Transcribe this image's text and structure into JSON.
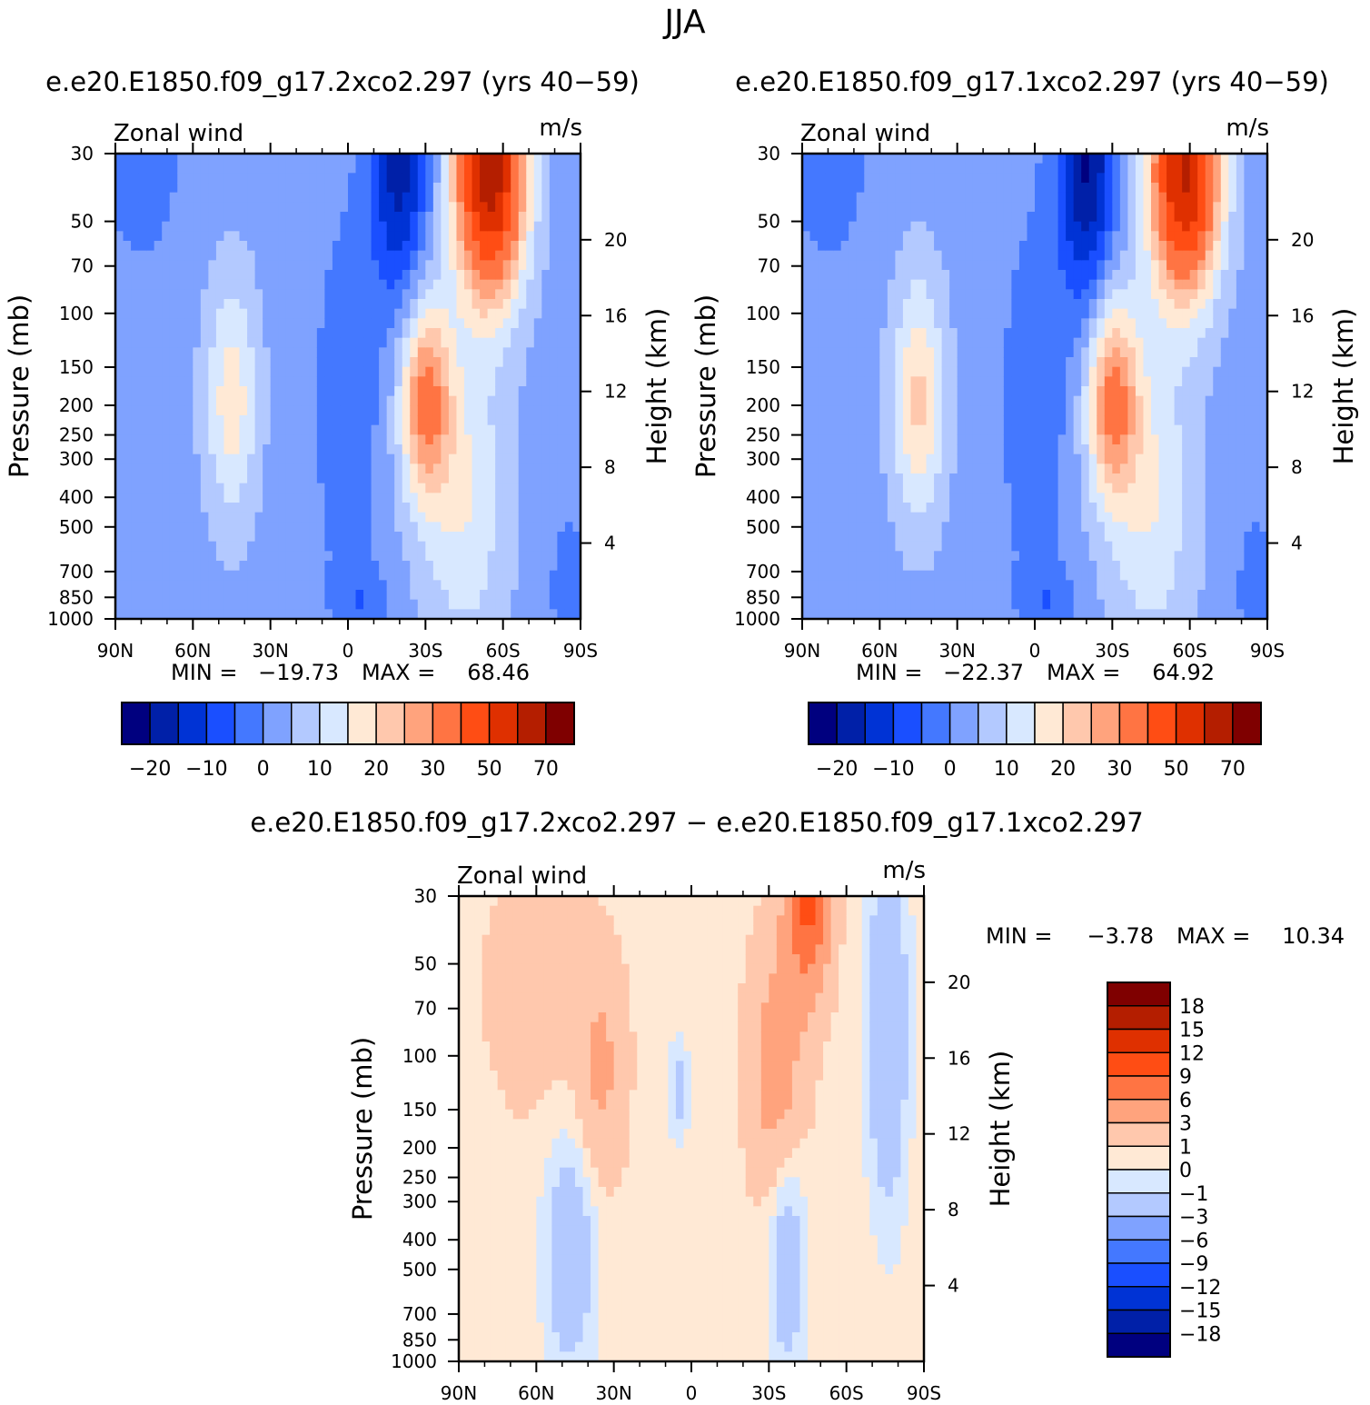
{
  "figure": {
    "title": "JJA"
  },
  "colors": {
    "main_scale": [
      "#00007f",
      "#0020a8",
      "#0033d5",
      "#1a4fff",
      "#4478ff",
      "#7fa2ff",
      "#b3c9ff",
      "#d8e8ff",
      "#ffe9d5",
      "#ffc8ad",
      "#ffa37d",
      "#ff7443",
      "#ff4d14",
      "#df3000",
      "#b41e00",
      "#7f0000"
    ],
    "diff_scale": [
      "#00007f",
      "#0020a8",
      "#0033d5",
      "#1a4fff",
      "#4478ff",
      "#7fa2ff",
      "#b3c9ff",
      "#d8e8ff",
      "#ffe9d5",
      "#ffc8ad",
      "#ffa37d",
      "#ff7443",
      "#ff4d14",
      "#df3000",
      "#b41e00",
      "#7f0000"
    ]
  },
  "chart_data": [
    {
      "type": "heatmap",
      "title": "e.e20.E1850.f09_g17.2xco2.297 (yrs 40−59)",
      "variable": "Zonal wind",
      "units": "m/s",
      "ylabel": "Pressure (mb)",
      "ylabel_right": "Height (km)",
      "x_ticks": [
        "90N",
        "60N",
        "30N",
        "0",
        "30S",
        "60S",
        "90S"
      ],
      "x_lat": [
        90,
        60,
        30,
        0,
        -30,
        -60,
        -90
      ],
      "y_ticks": [
        "30",
        "50",
        "70",
        "100",
        "150",
        "200",
        "250",
        "300",
        "400",
        "500",
        "700",
        "850",
        "1000"
      ],
      "y_pressure": [
        30,
        50,
        70,
        100,
        150,
        200,
        250,
        300,
        400,
        500,
        700,
        850,
        1000
      ],
      "height_ticks": [
        "20",
        "16",
        "12",
        "8",
        "4"
      ],
      "height_km": [
        20,
        16,
        12,
        8,
        4
      ],
      "stats": {
        "min_label": "MIN =",
        "min": "−19.73",
        "max_label": "MAX =",
        "max": "68.46"
      },
      "colorbar_labels": [
        "−20",
        "−10",
        "0",
        "10",
        "20",
        "30",
        "50",
        "70"
      ],
      "contour_levels": [
        -25,
        -20,
        -15,
        -10,
        -5,
        0,
        5,
        10,
        15,
        20,
        25,
        30,
        40,
        50,
        60,
        70
      ],
      "features": [
        {
          "lat": -55,
          "p": 35,
          "value": 68
        },
        {
          "lat": -28,
          "p": 180,
          "value": 35
        },
        {
          "lat": -20,
          "p": 35,
          "value": -19
        },
        {
          "lat": 45,
          "p": 190,
          "value": 17
        }
      ]
    },
    {
      "type": "heatmap",
      "title": "e.e20.E1850.f09_g17.1xco2.297 (yrs 40−59)",
      "variable": "Zonal wind",
      "units": "m/s",
      "ylabel": "Pressure (mb)",
      "ylabel_right": "Height (km)",
      "x_ticks": [
        "90N",
        "60N",
        "30N",
        "0",
        "30S",
        "60S",
        "90S"
      ],
      "x_lat": [
        90,
        60,
        30,
        0,
        -30,
        -60,
        -90
      ],
      "y_ticks": [
        "30",
        "50",
        "70",
        "100",
        "150",
        "200",
        "250",
        "300",
        "400",
        "500",
        "700",
        "850",
        "1000"
      ],
      "y_pressure": [
        30,
        50,
        70,
        100,
        150,
        200,
        250,
        300,
        400,
        500,
        700,
        850,
        1000
      ],
      "height_ticks": [
        "20",
        "16",
        "12",
        "8",
        "4"
      ],
      "height_km": [
        20,
        16,
        12,
        8,
        4
      ],
      "stats": {
        "min_label": "MIN =",
        "min": "−22.37",
        "max_label": "MAX =",
        "max": "64.92"
      },
      "colorbar_labels": [
        "−20",
        "−10",
        "0",
        "10",
        "20",
        "30",
        "50",
        "70"
      ],
      "contour_levels": [
        -25,
        -20,
        -15,
        -10,
        -5,
        0,
        5,
        10,
        15,
        20,
        25,
        30,
        40,
        50,
        60,
        70
      ],
      "features": [
        {
          "lat": -60,
          "p": 35,
          "value": 64
        },
        {
          "lat": -28,
          "p": 190,
          "value": 33
        },
        {
          "lat": -20,
          "p": 35,
          "value": -22
        },
        {
          "lat": 45,
          "p": 200,
          "value": 21
        }
      ]
    },
    {
      "type": "heatmap",
      "title": "e.e20.E1850.f09_g17.2xco2.297 − e.e20.E1850.f09_g17.1xco2.297",
      "variable": "Zonal wind",
      "units": "m/s",
      "ylabel": "Pressure (mb)",
      "ylabel_right": "Height (km)",
      "x_ticks": [
        "90N",
        "60N",
        "30N",
        "0",
        "30S",
        "60S",
        "90S"
      ],
      "x_lat": [
        90,
        60,
        30,
        0,
        -30,
        -60,
        -90
      ],
      "y_ticks": [
        "30",
        "50",
        "70",
        "100",
        "150",
        "200",
        "250",
        "300",
        "400",
        "500",
        "700",
        "850",
        "1000"
      ],
      "y_pressure": [
        30,
        50,
        70,
        100,
        150,
        200,
        250,
        300,
        400,
        500,
        700,
        850,
        1000
      ],
      "height_ticks": [
        "20",
        "16",
        "12",
        "8",
        "4"
      ],
      "height_km": [
        20,
        16,
        12,
        8,
        4
      ],
      "stats": {
        "min_label": "MIN =",
        "min": "−3.78",
        "max_label": "MAX =",
        "max": "10.34"
      },
      "colorbar_labels": [
        "18",
        "15",
        "12",
        "9",
        "6",
        "3",
        "1",
        "0",
        "−1",
        "−3",
        "−6",
        "−9",
        "−12",
        "−15",
        "−18"
      ],
      "contour_levels": [
        -21,
        -18,
        -15,
        -12,
        -9,
        -6,
        -3,
        -1,
        0,
        1,
        3,
        6,
        9,
        12,
        15,
        18
      ],
      "features": [
        {
          "lat": -45,
          "p": 35,
          "value": 10
        },
        {
          "lat": -35,
          "p": 100,
          "value": 8
        },
        {
          "lat": 35,
          "p": 120,
          "value": 4
        },
        {
          "lat": 48,
          "p": 450,
          "value": -3
        },
        {
          "lat": -38,
          "p": 450,
          "value": -3
        },
        {
          "lat": -72,
          "p": 60,
          "value": -3
        }
      ]
    }
  ]
}
